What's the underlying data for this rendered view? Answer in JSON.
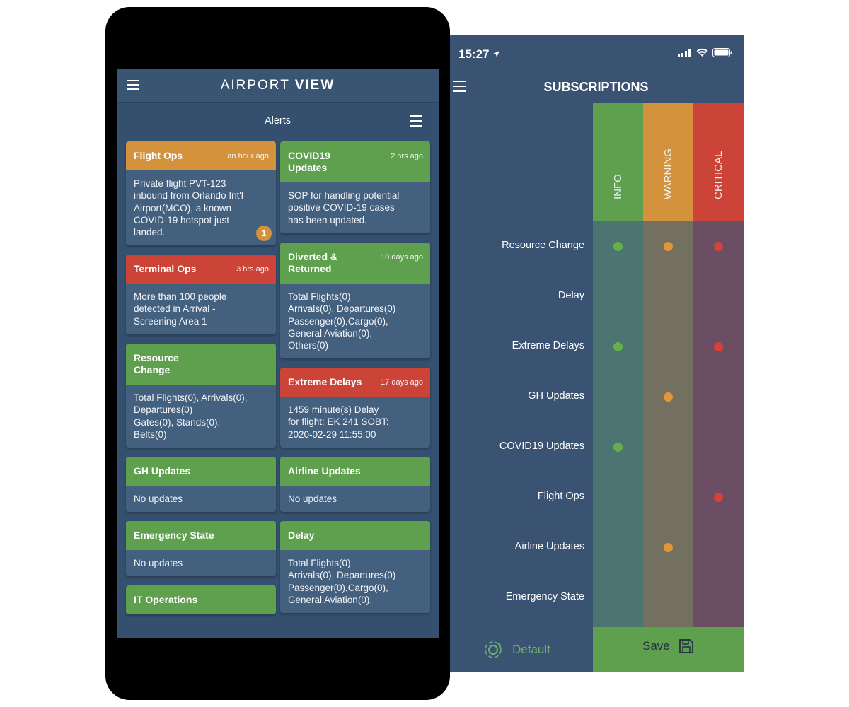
{
  "app": {
    "logo_light": "AIRPORT",
    "logo_bold": "VIEW",
    "alerts_title": "Alerts",
    "colors": {
      "green": "#5fa04e",
      "orange": "#d4923c",
      "red": "#cc4338",
      "navy": "#34506e"
    },
    "cards": [
      {
        "title": "Flight Ops",
        "time": "an hour ago",
        "color": "orange",
        "body": [
          "Private flight PVT-123",
          "inbound from Orlando Int'l",
          "Airport(MCO), a known",
          "COVID-19 hotspot just",
          "landed."
        ],
        "badge": "1"
      },
      {
        "title": "COVID19 Updates",
        "time": "2 hrs ago",
        "color": "green",
        "body": [
          "SOP for handling potential",
          "positive COVID-19 cases",
          "has been updated."
        ]
      },
      {
        "title": "Terminal Ops",
        "time": "3 hrs ago",
        "color": "red",
        "body": [
          "More than 100 people",
          "detected in Arrival -",
          "Screening Area 1"
        ]
      },
      {
        "title": "Diverted & Returned",
        "time": "10 days ago",
        "color": "green",
        "body": [
          "Total Flights(0)",
          "Arrivals(0), Departures(0)",
          "Passenger(0),Cargo(0),",
          "General Aviation(0),",
          "Others(0)"
        ]
      },
      {
        "title": "Resource Change",
        "time": "",
        "color": "green",
        "body": [
          "Total Flights(0), Arrivals(0),",
          "Departures(0)",
          "Gates(0), Stands(0),",
          "Belts(0)"
        ]
      },
      {
        "title": "Extreme Delays",
        "time": "17 days ago",
        "color": "red",
        "body": [
          "1459 minute(s) Delay",
          "for flight: EK 241 SOBT:",
          "2020-02-29 11:55:00"
        ]
      },
      {
        "title": "GH Updates",
        "time": "",
        "color": "green",
        "body": [
          "No updates"
        ]
      },
      {
        "title": "Airline Updates",
        "time": "",
        "color": "green",
        "body": [
          "No updates"
        ]
      },
      {
        "title": "Emergency State",
        "time": "",
        "color": "green",
        "body": [
          "No updates"
        ]
      },
      {
        "title": "Delay",
        "time": "",
        "color": "green",
        "body": [
          "Total Flights(0)",
          "Arrivals(0), Departures(0)",
          "Passenger(0),Cargo(0),",
          "General Aviation(0),"
        ]
      },
      {
        "title": "IT Operations",
        "time": "",
        "color": "green",
        "body": []
      }
    ]
  },
  "subscriptions": {
    "status_time": "15:27",
    "title": "SUBSCRIPTIONS",
    "columns": [
      {
        "label": "INFO",
        "head_color": "#5fa04e",
        "body_color": "#4c7470",
        "dot_color": "#66b04a"
      },
      {
        "label": "WARNING",
        "head_color": "#d4923c",
        "body_color": "#74705f",
        "dot_color": "#e0963a"
      },
      {
        "label": "CRITICAL",
        "head_color": "#cc4338",
        "body_color": "#6b4e64",
        "dot_color": "#d8403a"
      }
    ],
    "rows": [
      {
        "label": "Resource Change",
        "info": true,
        "warning": true,
        "critical": true
      },
      {
        "label": "Delay",
        "info": false,
        "warning": false,
        "critical": false
      },
      {
        "label": "Extreme Delays",
        "info": true,
        "warning": false,
        "critical": true
      },
      {
        "label": "GH Updates",
        "info": false,
        "warning": true,
        "critical": false
      },
      {
        "label": "COVID19 Updates",
        "info": true,
        "warning": false,
        "critical": false
      },
      {
        "label": "Flight Ops",
        "info": false,
        "warning": false,
        "critical": true
      },
      {
        "label": "Airline Updates",
        "info": false,
        "warning": true,
        "critical": false
      },
      {
        "label": "Emergency State",
        "info": false,
        "warning": false,
        "critical": false
      }
    ],
    "default_label": "Default",
    "save_label": "Save"
  }
}
